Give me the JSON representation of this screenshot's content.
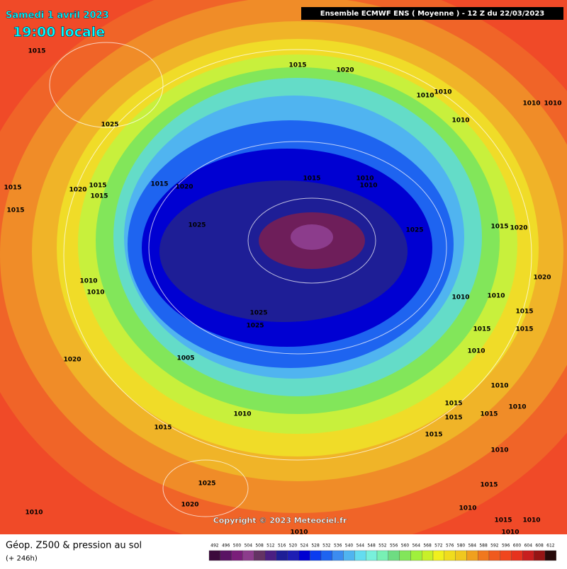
{
  "header": {
    "date": "Samedi 1 avril 2023",
    "time": "19:00 locale",
    "model": "Ensemble ECMWF ENS  ( Moyenne )  -  12 Z du 22/03/2023"
  },
  "map": {
    "pressure_labels": [
      "1015",
      "1015",
      "1020",
      "1025",
      "1010",
      "1010",
      "1010",
      "1010",
      "1015",
      "1015",
      "1020",
      "1015",
      "1015",
      "1015",
      "1020",
      "1010",
      "1010",
      "1025",
      "1015",
      "1025",
      "1025",
      "1025",
      "1010",
      "1010",
      "1005",
      "1020",
      "1010",
      "1015",
      "1025",
      "1020",
      "1010",
      "1010",
      "1015",
      "1015",
      "1015",
      "1010",
      "1010",
      "1010",
      "1015",
      "1020",
      "1020",
      "1015",
      "1015",
      "1015",
      "1010",
      "1010",
      "1010",
      "1015",
      "1015",
      "1010",
      "1015",
      "1010",
      "1010",
      "1010"
    ],
    "copyright": "Copyright © 2023 Meteociel.fr"
  },
  "legend": {
    "title": "Géop. Z500 & pression au sol",
    "lead": "(+ 246h)",
    "scale": [
      492,
      496,
      500,
      504,
      508,
      512,
      516,
      520,
      524,
      528,
      532,
      536,
      540,
      544,
      548,
      552,
      556,
      560,
      564,
      568,
      572,
      576,
      580,
      584,
      588,
      592,
      596,
      600,
      604,
      608,
      612
    ]
  }
}
